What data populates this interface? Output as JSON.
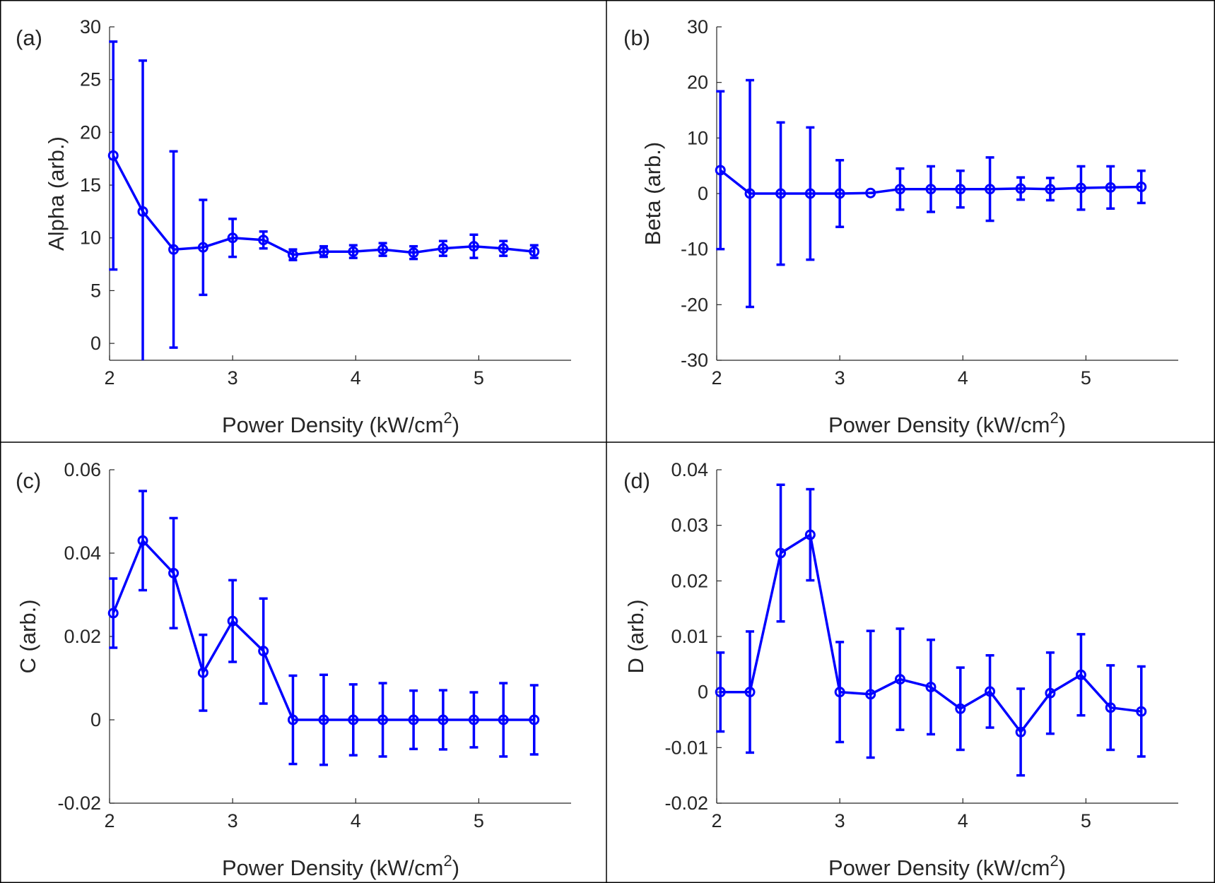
{
  "colors": {
    "series": "#0000ff",
    "axes": "#262626",
    "frame": "#000000",
    "background": "#ffffff"
  },
  "chart_data": [
    {
      "type": "line",
      "panel_label": "(a)",
      "xlabel": "Power Density (kW/cm",
      "xlabel_sup": "2",
      "xlabel_close": ")",
      "ylabel": "Alpha (arb.)",
      "xlim": [
        2,
        5.75
      ],
      "ylim": [
        -1.6,
        30
      ],
      "xticks": [
        2,
        3,
        4,
        5
      ],
      "yticks": [
        0,
        5,
        10,
        15,
        20,
        25,
        30
      ],
      "ytick_labels": [
        "0",
        "5",
        "10",
        "15",
        "20",
        "25",
        "30"
      ],
      "marker": "circle",
      "error_bars": true,
      "grid": false,
      "legend": "none",
      "x": [
        2.03,
        2.27,
        2.52,
        2.76,
        3.0,
        3.25,
        3.49,
        3.74,
        3.98,
        4.22,
        4.47,
        4.71,
        4.96,
        5.2,
        5.45
      ],
      "y": [
        17.8,
        12.5,
        8.9,
        9.1,
        10.0,
        9.8,
        8.4,
        8.7,
        8.7,
        8.9,
        8.6,
        9.0,
        9.2,
        9.0,
        8.7
      ],
      "err": [
        10.8,
        14.3,
        9.3,
        4.5,
        1.8,
        0.8,
        0.5,
        0.5,
        0.6,
        0.6,
        0.6,
        0.7,
        1.1,
        0.7,
        0.6
      ]
    },
    {
      "type": "line",
      "panel_label": "(b)",
      "xlabel": "Power Density (kW/cm",
      "xlabel_sup": "2",
      "xlabel_close": ")",
      "ylabel": "Beta (arb.)",
      "xlim": [
        2,
        5.75
      ],
      "ylim": [
        -30,
        30
      ],
      "xticks": [
        2,
        3,
        4,
        5
      ],
      "yticks": [
        -30,
        -20,
        -10,
        0,
        10,
        20,
        30
      ],
      "ytick_labels": [
        "-30",
        "-20",
        "-10",
        "0",
        "10",
        "20",
        "30"
      ],
      "marker": "circle",
      "error_bars": true,
      "grid": false,
      "legend": "none",
      "x": [
        2.03,
        2.27,
        2.52,
        2.76,
        3.0,
        3.25,
        3.49,
        3.74,
        3.98,
        4.22,
        4.47,
        4.71,
        4.96,
        5.2,
        5.45
      ],
      "y": [
        4.2,
        0.0,
        0.0,
        0.0,
        0.0,
        0.1,
        0.8,
        0.8,
        0.8,
        0.8,
        0.9,
        0.8,
        1.0,
        1.1,
        1.2
      ],
      "err": [
        14.2,
        20.4,
        12.8,
        11.9,
        6.0,
        0.0,
        3.7,
        4.1,
        3.3,
        5.7,
        2.0,
        2.0,
        3.9,
        3.8,
        2.9
      ]
    },
    {
      "type": "line",
      "panel_label": "(c)",
      "xlabel": "Power Density (kW/cm",
      "xlabel_sup": "2",
      "xlabel_close": ")",
      "ylabel": "C (arb.)",
      "xlim": [
        2,
        5.75
      ],
      "ylim": [
        -0.02,
        0.06
      ],
      "xticks": [
        2,
        3,
        4,
        5
      ],
      "yticks": [
        -0.02,
        0,
        0.02,
        0.04,
        0.06
      ],
      "ytick_labels": [
        "-0.02",
        "0",
        "0.02",
        "0.04",
        "0.06"
      ],
      "marker": "circle",
      "error_bars": true,
      "grid": false,
      "legend": "none",
      "x": [
        2.03,
        2.27,
        2.52,
        2.76,
        3.0,
        3.25,
        3.49,
        3.74,
        3.98,
        4.22,
        4.47,
        4.71,
        4.96,
        5.2,
        5.45
      ],
      "y": [
        0.0256,
        0.043,
        0.0352,
        0.0113,
        0.0237,
        0.0165,
        0.0,
        0.0,
        0.0,
        0.0,
        0.0,
        0.0,
        0.0,
        0.0,
        0.0
      ],
      "err": [
        0.0083,
        0.0119,
        0.0132,
        0.0091,
        0.0098,
        0.0126,
        0.0106,
        0.0108,
        0.0085,
        0.0088,
        0.007,
        0.0071,
        0.0066,
        0.0088,
        0.0083
      ]
    },
    {
      "type": "line",
      "panel_label": "(d)",
      "xlabel": "Power Density (kW/cm",
      "xlabel_sup": "2",
      "xlabel_close": ")",
      "ylabel": "D (arb.)",
      "xlim": [
        2,
        5.75
      ],
      "ylim": [
        -0.02,
        0.04
      ],
      "xticks": [
        2,
        3,
        4,
        5
      ],
      "yticks": [
        -0.02,
        -0.01,
        0,
        0.01,
        0.02,
        0.03,
        0.04
      ],
      "ytick_labels": [
        "-0.02",
        "-0.01",
        "0",
        "0.01",
        "0.02",
        "0.03",
        "0.04"
      ],
      "marker": "circle",
      "error_bars": true,
      "grid": false,
      "legend": "none",
      "x": [
        2.03,
        2.27,
        2.52,
        2.76,
        3.0,
        3.25,
        3.49,
        3.74,
        3.98,
        4.22,
        4.47,
        4.71,
        4.96,
        5.2,
        5.45
      ],
      "y": [
        0.0,
        0.0,
        0.025,
        0.0283,
        0.0,
        -0.0004,
        0.0023,
        0.0009,
        -0.003,
        0.0001,
        -0.0072,
        -0.0002,
        0.0031,
        -0.0028,
        -0.0035
      ],
      "err": [
        0.0071,
        0.0109,
        0.0123,
        0.0082,
        0.009,
        0.0114,
        0.0091,
        0.0085,
        0.0074,
        0.0065,
        0.0078,
        0.0073,
        0.0073,
        0.0076,
        0.0081
      ]
    }
  ]
}
